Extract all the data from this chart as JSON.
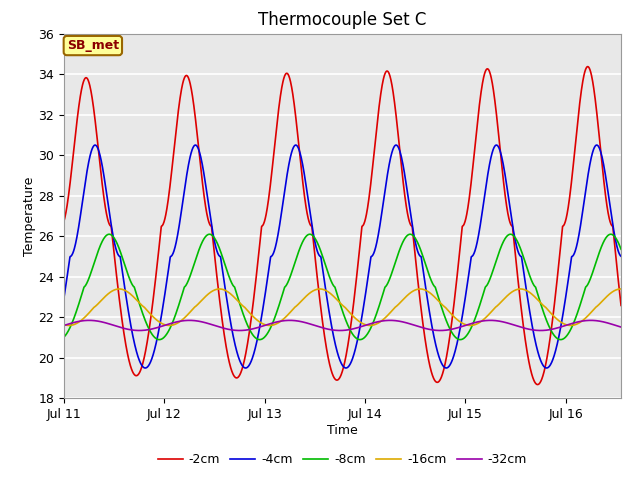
{
  "title": "Thermocouple Set C",
  "xlabel": "Time",
  "ylabel": "Temperature",
  "ylim": [
    18,
    36
  ],
  "xtick_labels": [
    "Jul 11",
    "Jul 12",
    "Jul 13",
    "Jul 14",
    "Jul 15",
    "Jul 16"
  ],
  "xtick_positions": [
    0,
    1,
    2,
    3,
    4,
    5
  ],
  "annotation": "SB_met",
  "legend_labels": [
    "-2cm",
    "-4cm",
    "-8cm",
    "-16cm",
    "-32cm"
  ],
  "line_colors": [
    "#dd0000",
    "#0000dd",
    "#00bb00",
    "#ddaa00",
    "#9900aa"
  ],
  "fig_bg_color": "#ffffff",
  "plot_bg_color": "#e8e8e8",
  "grid_color": "#ffffff",
  "title_fontsize": 12,
  "axis_label_fontsize": 9,
  "n_points": 2000,
  "period": 1.0
}
